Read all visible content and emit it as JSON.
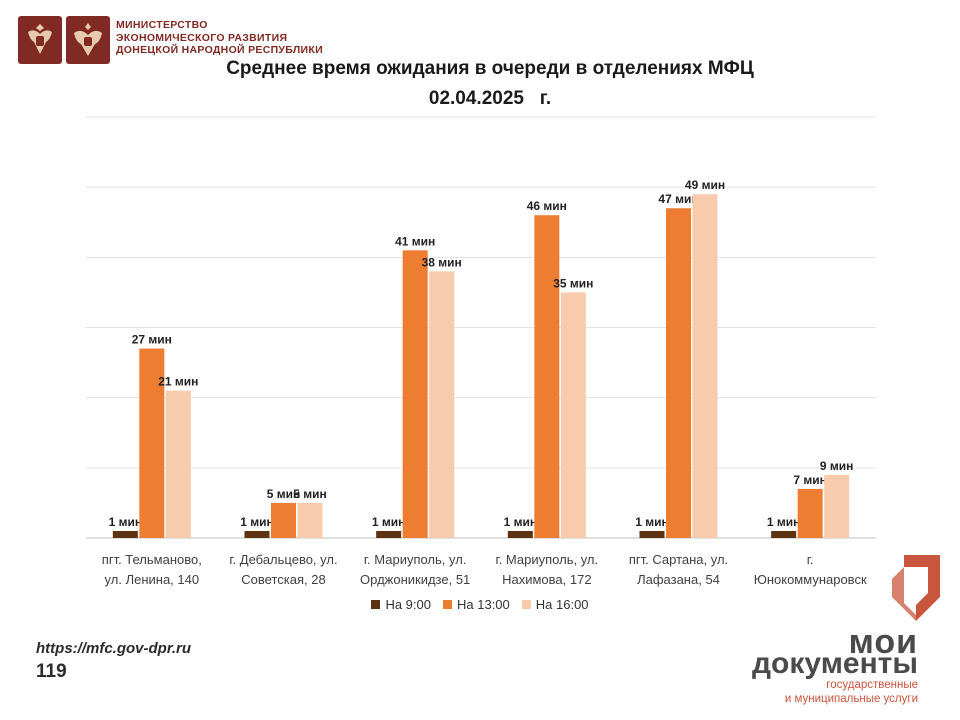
{
  "header": {
    "ministry_line1": "МИНИСТЕРСТВО",
    "ministry_line2": "ЭКОНОМИЧЕСКОГО РАЗВИТИЯ",
    "ministry_line3": "ДОНЕЦКОЙ НАРОДНОЙ РЕСПУБЛИКИ"
  },
  "chart_data": {
    "type": "bar",
    "title": "Среднее время ожидания в очереди в отделениях МФЦ",
    "subtitle": "02.04.2025   г.",
    "categories": [
      [
        "пгт. Тельманово,",
        "ул. Ленина, 140"
      ],
      [
        "г. Дебальцево, ул.",
        "Советская, 28"
      ],
      [
        "г. Мариуполь, ул.",
        "Орджоникидзе, 51"
      ],
      [
        "г. Мариуполь, ул.",
        "Нахимова, 172"
      ],
      [
        "пгт. Сартана, ул.",
        "Лафазана, 54"
      ],
      [
        "г.",
        "Юнокоммунаровск"
      ]
    ],
    "series": [
      {
        "name": "На 9:00",
        "color": "#5c3210",
        "values": [
          1,
          1,
          1,
          1,
          1,
          1
        ],
        "labels": [
          "1 мин",
          "1 мин",
          "1 мин",
          "1 мин",
          "1 мин",
          "1 мин"
        ]
      },
      {
        "name": "На 13:00",
        "color": "#ed7d31",
        "values": [
          27,
          5,
          41,
          46,
          47,
          7
        ],
        "labels": [
          "27 мин",
          "5 мин",
          "41 мин",
          "46 мин",
          "47 мин",
          "7 мин"
        ]
      },
      {
        "name": "На 16:00",
        "color": "#f8cbad",
        "values": [
          21,
          5,
          38,
          35,
          49,
          9
        ],
        "labels": [
          "21 мин",
          "5 мин",
          "38 мин",
          "35 мин",
          "49 мин",
          "9 мин"
        ]
      }
    ],
    "ylim": [
      0,
      60
    ],
    "grid": true,
    "y_tick_labels": false,
    "legend_position": "bottom"
  },
  "footer": {
    "url": "https://mfc.gov-dpr.ru",
    "page_number": "119"
  },
  "logo": {
    "word1": "мои",
    "word2": "документы",
    "sub1": "государственные",
    "sub2": "и муниципальные услуги",
    "colors": {
      "mark": "#c8553d",
      "text": "#4a4a4a"
    }
  }
}
